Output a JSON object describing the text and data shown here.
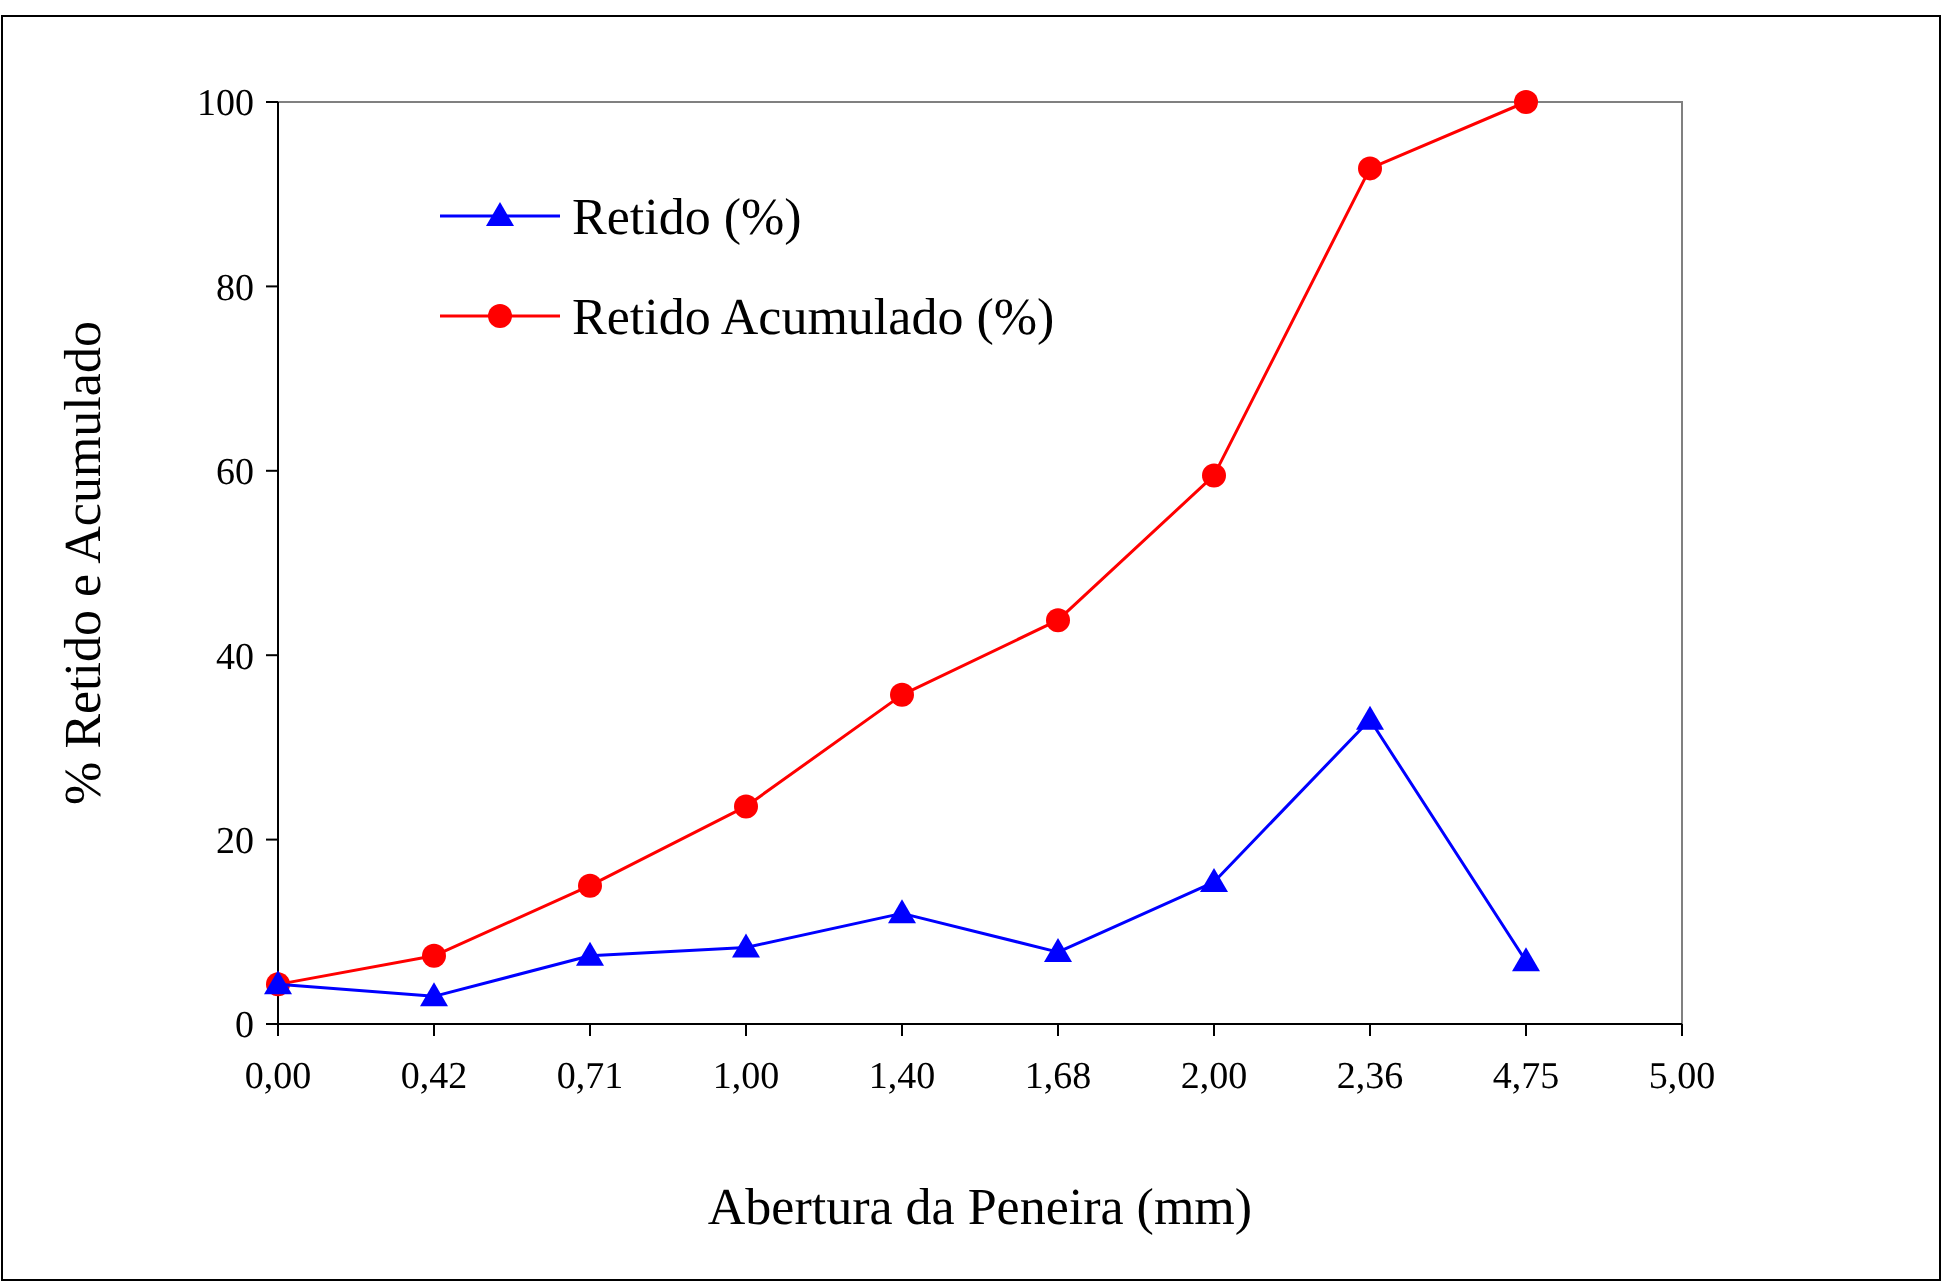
{
  "chart_data": {
    "type": "line",
    "xlabel": "Abertura da Peneira (mm)",
    "ylabel": "% Retido e Acumulado",
    "categories": [
      "0,00",
      "0,42",
      "0,71",
      "1,00",
      "1,40",
      "1,68",
      "2,00",
      "2,36",
      "4,75",
      "5,00"
    ],
    "ylim": [
      0,
      100
    ],
    "yticks": [
      0,
      20,
      40,
      60,
      80,
      100
    ],
    "grid": false,
    "legend": "top left",
    "series": [
      {
        "name": "Retido (%)",
        "color": "#0000ff",
        "marker": "triangle",
        "values": [
          4.3,
          3,
          7.4,
          8.3,
          12,
          7.8,
          15.4,
          33,
          6.8,
          null
        ]
      },
      {
        "name": "Retido Acumulado (%)",
        "color": "#ff0000",
        "marker": "circle",
        "values": [
          4.3,
          7.4,
          15,
          23.6,
          35.7,
          43.8,
          59.5,
          92.8,
          100,
          null
        ]
      }
    ]
  }
}
